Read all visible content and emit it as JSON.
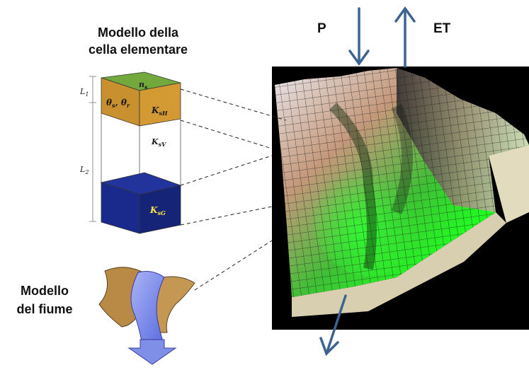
{
  "cell_model": {
    "title_line1": "Modello della",
    "title_line2": "cella elementare",
    "top_label": "n",
    "top_sub": "s",
    "theta_label": "θ",
    "theta_s_sub": "s",
    "theta_r_sub": "r",
    "ksh_label": "K",
    "ksh_sub": "sH",
    "ksv_label": "K",
    "ksv_sub": "sV",
    "ksg_label": "K",
    "ksg_sub": "sG",
    "l1_label": "L",
    "l1_sub": "1",
    "l2_label": "L",
    "l2_sub": "2"
  },
  "river_model": {
    "title_line1": "Modello",
    "title_line2": "del fiume"
  },
  "fluxes": {
    "p_label": "P",
    "et_label": "ET"
  },
  "colors": {
    "arrow": "#3d6391",
    "top_face": "#72a83c",
    "upper_layer": "#c8902e",
    "lower_layer": "#1a2a8c",
    "terrain_bg": "#000000",
    "river_bank": "#b88a46",
    "river_water": "#7f8fe8"
  }
}
